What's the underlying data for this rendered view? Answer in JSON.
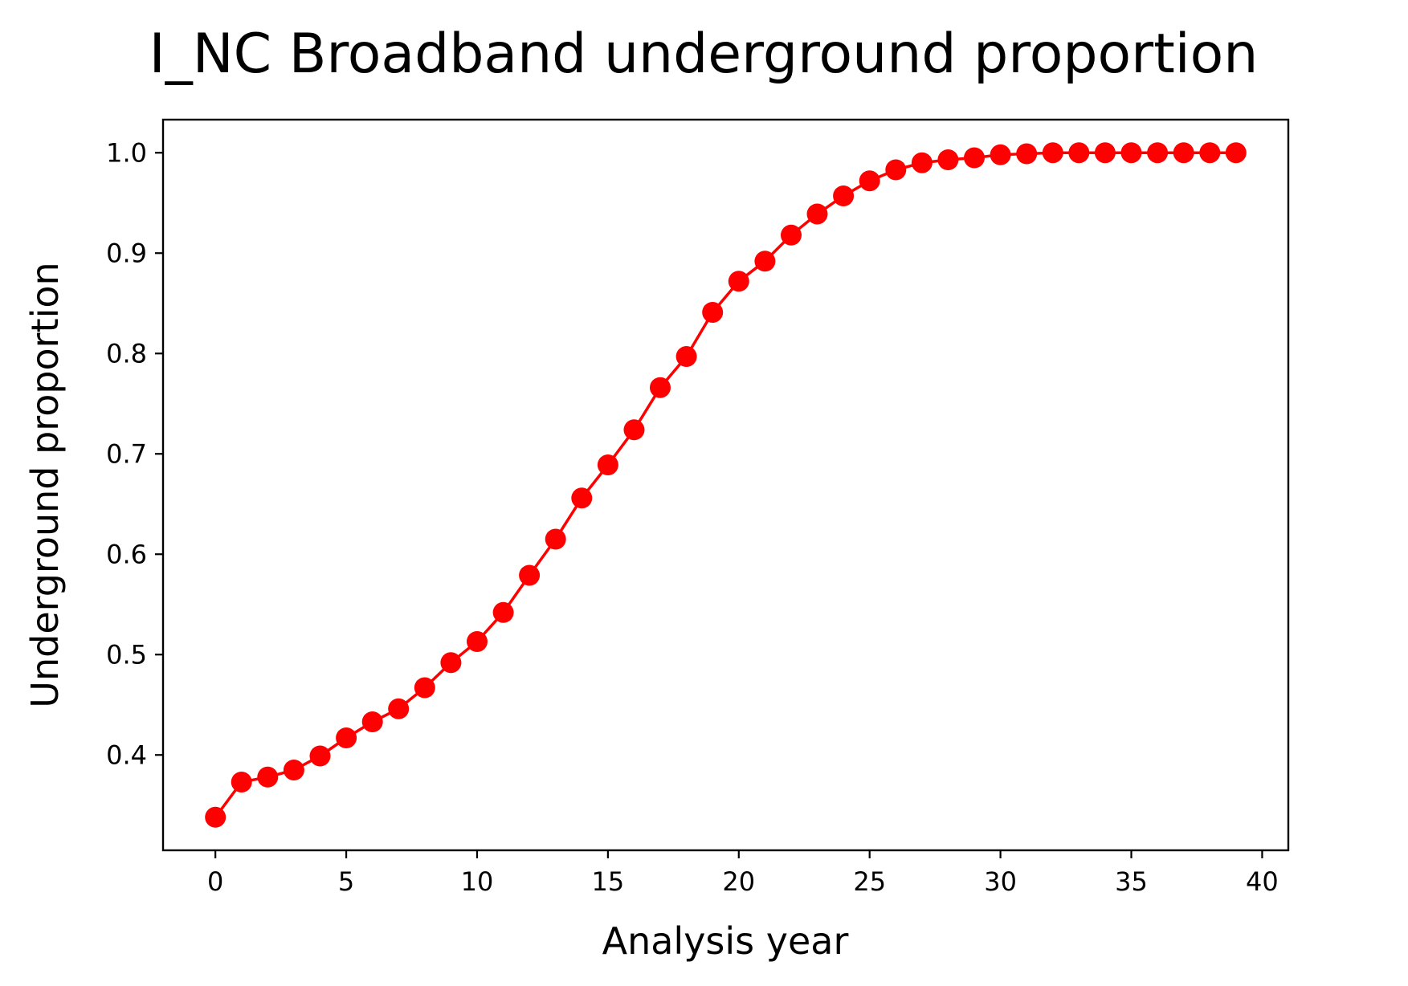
{
  "chart_data": {
    "type": "line",
    "title": "I_NC Broadband underground proportion",
    "xlabel": "Analysis year",
    "ylabel": "Underground proportion",
    "xlim": [
      -2,
      41
    ],
    "ylim": [
      0.305,
      1.033
    ],
    "xticks": [
      0,
      5,
      10,
      15,
      20,
      25,
      30,
      35,
      40
    ],
    "xtick_labels": [
      "0",
      "5",
      "10",
      "15",
      "20",
      "25",
      "30",
      "35",
      "40"
    ],
    "yticks": [
      0.4,
      0.5,
      0.6,
      0.7,
      0.8,
      0.9,
      1.0
    ],
    "ytick_labels": [
      "0.4",
      "0.5",
      "0.6",
      "0.7",
      "0.8",
      "0.9",
      "1.0"
    ],
    "grid": false,
    "legend": "none",
    "series": [
      {
        "color": "#ff0000",
        "marker": "circle",
        "x": [
          0,
          1,
          2,
          3,
          4,
          5,
          6,
          7,
          8,
          9,
          10,
          11,
          12,
          13,
          14,
          15,
          16,
          17,
          18,
          19,
          20,
          21,
          22,
          23,
          24,
          25,
          26,
          27,
          28,
          29,
          30,
          31,
          32,
          33,
          34,
          35,
          36,
          37,
          38,
          39
        ],
        "values": [
          0.338,
          0.373,
          0.378,
          0.385,
          0.399,
          0.417,
          0.433,
          0.446,
          0.467,
          0.492,
          0.513,
          0.542,
          0.579,
          0.615,
          0.656,
          0.689,
          0.724,
          0.766,
          0.797,
          0.841,
          0.872,
          0.892,
          0.918,
          0.939,
          0.957,
          0.972,
          0.983,
          0.99,
          0.993,
          0.995,
          0.998,
          0.999,
          1.0,
          1.0,
          1.0,
          1.0,
          1.0,
          1.0,
          1.0,
          1.0
        ]
      }
    ]
  }
}
